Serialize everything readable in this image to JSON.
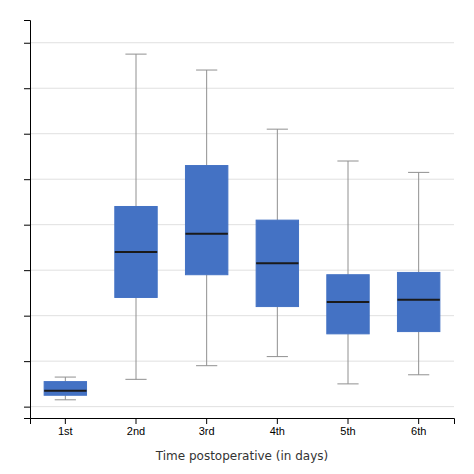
{
  "chart_data": {
    "type": "box",
    "categories": [
      "1st",
      "2nd",
      "3rd",
      "4th",
      "5th",
      "6th"
    ],
    "boxes": [
      {
        "whislo": 3,
        "q1": 5,
        "med": 7,
        "q3": 11,
        "whishi": 13
      },
      {
        "whislo": 12,
        "q1": 48,
        "med": 68,
        "q3": 88,
        "whishi": 155
      },
      {
        "whislo": 18,
        "q1": 58,
        "med": 76,
        "q3": 106,
        "whishi": 148
      },
      {
        "whislo": 22,
        "q1": 44,
        "med": 63,
        "q3": 82,
        "whishi": 122
      },
      {
        "whislo": 10,
        "q1": 32,
        "med": 46,
        "q3": 58,
        "whishi": 108
      },
      {
        "whislo": 14,
        "q1": 33,
        "med": 47,
        "q3": 59,
        "whishi": 103
      }
    ],
    "color": "#4472C4",
    "xlabel": "Time postoperative (in days)",
    "ylim": [
      -5,
      170
    ],
    "yticks": [
      0,
      20,
      40,
      60,
      80,
      100,
      120,
      140,
      160
    ],
    "grid": true,
    "tick_labels": "x"
  }
}
